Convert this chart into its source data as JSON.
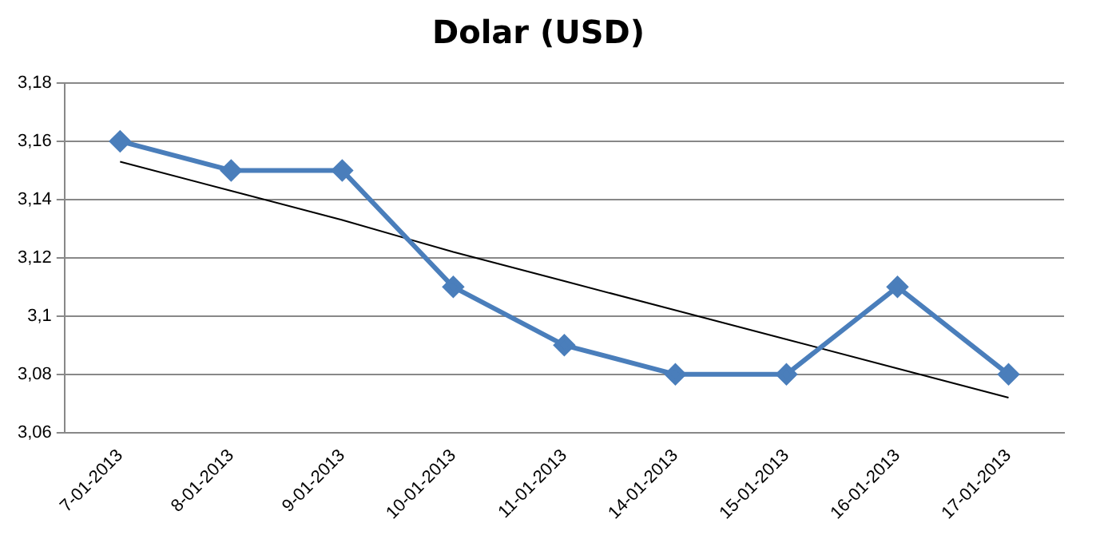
{
  "chart_data": {
    "type": "line",
    "title": "Dolar (USD)",
    "categories": [
      "7-01-2013",
      "8-01-2013",
      "9-01-2013",
      "10-01-2013",
      "11-01-2013",
      "14-01-2013",
      "15-01-2013",
      "16-01-2013",
      "17-01-2013"
    ],
    "series": [
      {
        "color": "#4a7ebb",
        "marker": "diamond",
        "values": [
          3.16,
          3.15,
          3.15,
          3.11,
          3.09,
          3.08,
          3.08,
          3.11,
          3.08
        ]
      },
      {
        "color": "#000000",
        "marker": "none",
        "values": [
          3.153,
          3.143,
          3.133,
          3.122,
          3.112,
          3.102,
          3.092,
          3.082,
          3.072
        ]
      }
    ],
    "ylim": [
      3.06,
      3.18
    ],
    "yticks": [
      {
        "value": 3.06,
        "label": "3,06"
      },
      {
        "value": 3.08,
        "label": "3,08"
      },
      {
        "value": 3.1,
        "label": "3,1"
      },
      {
        "value": 3.12,
        "label": "3,12"
      },
      {
        "value": 3.14,
        "label": "3,14"
      },
      {
        "value": 3.16,
        "label": "3,16"
      },
      {
        "value": 3.18,
        "label": "3,18"
      }
    ],
    "grid": "y",
    "legend": false
  }
}
